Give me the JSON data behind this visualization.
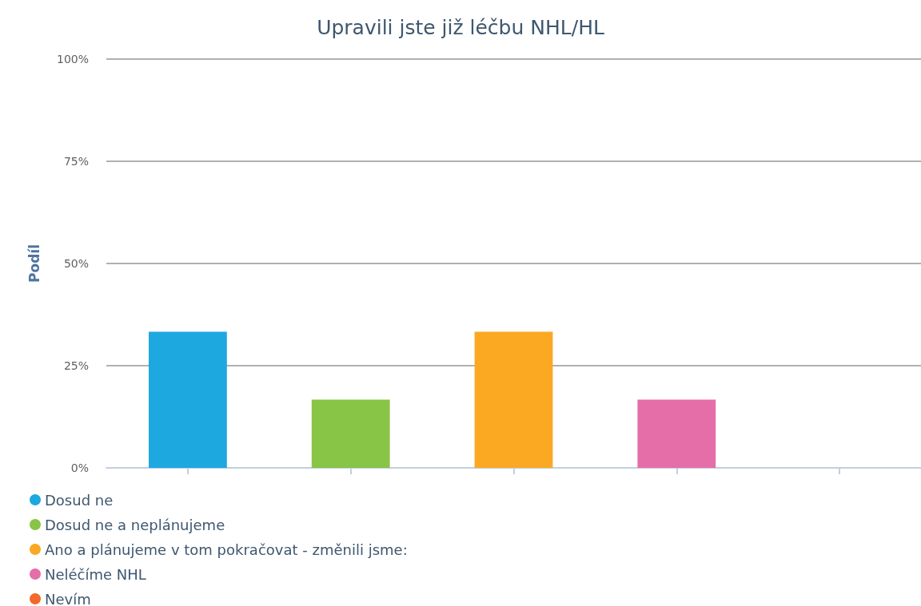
{
  "chart_data": {
    "type": "bar",
    "title": "Upravili jste již léčbu NHL/HL",
    "ylabel": "Podíl",
    "categories": [
      null,
      null,
      null,
      null,
      null
    ],
    "series": [
      {
        "name": "Dosud ne",
        "color": "#1ea8e0",
        "values": [
          33.3,
          null,
          null,
          null,
          null
        ]
      },
      {
        "name": "Dosud ne a neplánujeme",
        "color": "#88c446",
        "values": [
          null,
          16.7,
          null,
          null,
          null
        ]
      },
      {
        "name": "Ano a plánujeme v tom pokračovat - změnili jsme:",
        "color": "#fba822",
        "values": [
          null,
          null,
          33.3,
          null,
          null
        ]
      },
      {
        "name": "Neléčíme NHL",
        "color": "#e56ea9",
        "values": [
          null,
          null,
          null,
          16.7,
          null
        ]
      },
      {
        "name": "Nevím",
        "color": "#f26a2a",
        "values": [
          null,
          null,
          null,
          null,
          0
        ]
      }
    ],
    "ylim": [
      0,
      100
    ],
    "yticks": [
      {
        "value": 0,
        "label": "0%"
      },
      {
        "value": 25,
        "label": "25%"
      },
      {
        "value": 50,
        "label": "50%"
      },
      {
        "value": 75,
        "label": "75%"
      },
      {
        "value": 100,
        "label": "100%"
      }
    ],
    "grid": "y",
    "legend": "bottom left"
  }
}
